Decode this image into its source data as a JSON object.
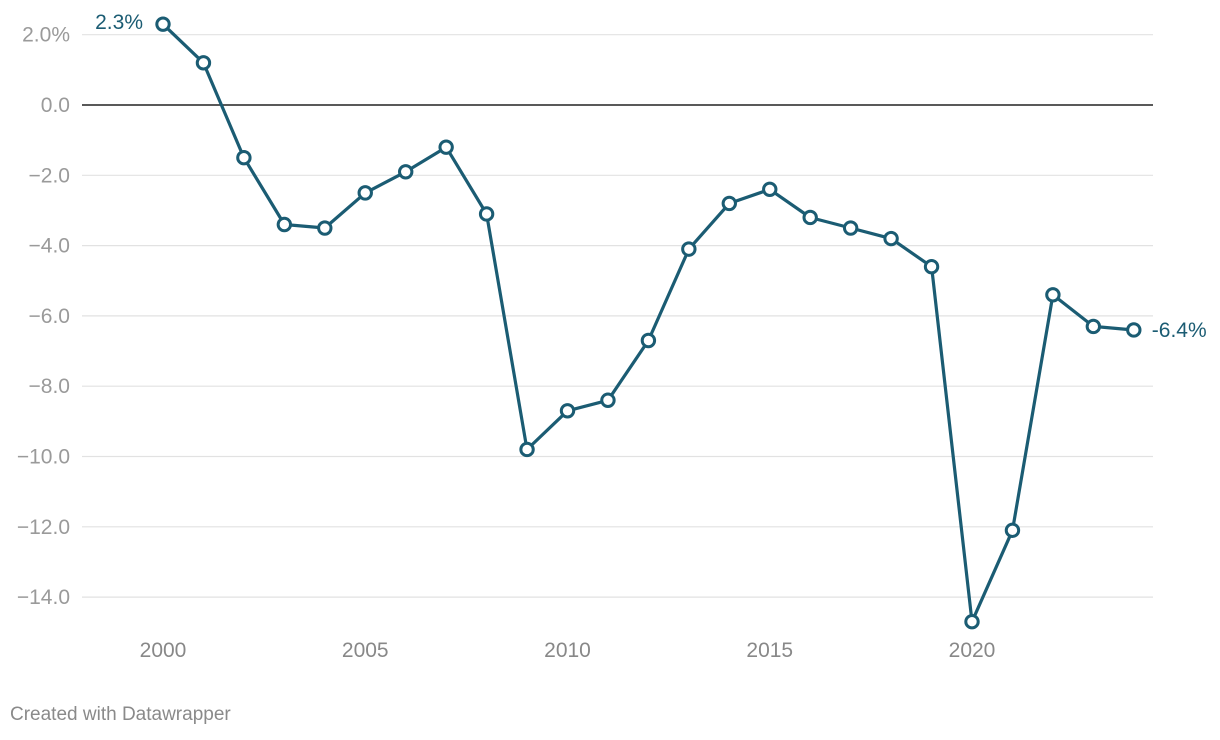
{
  "chart_data": {
    "type": "line",
    "title": "",
    "xlabel": "",
    "ylabel": "",
    "x": [
      2000,
      2001,
      2002,
      2003,
      2004,
      2005,
      2006,
      2007,
      2008,
      2009,
      2010,
      2011,
      2012,
      2013,
      2014,
      2015,
      2016,
      2017,
      2018,
      2019,
      2020,
      2021,
      2022,
      2023,
      2024
    ],
    "series": [
      {
        "values": [
          2.3,
          1.2,
          -1.5,
          -3.4,
          -3.5,
          -2.5,
          -1.9,
          -1.2,
          -3.1,
          -9.8,
          -8.7,
          -8.4,
          -6.7,
          -4.1,
          -2.8,
          -2.4,
          -3.2,
          -3.5,
          -3.8,
          -4.6,
          -14.7,
          -12.1,
          -5.4,
          -6.3,
          -6.4
        ]
      }
    ],
    "xlim": [
      1998,
      2024.5
    ],
    "ylim": [
      -15.2,
      2.4
    ],
    "y_ticks": [
      2,
      0,
      -2,
      -4,
      -6,
      -8,
      -10,
      -12,
      -14
    ],
    "y_tick_labels": [
      "2.0%",
      "0.0",
      "−2.0",
      "−4.0",
      "−6.0",
      "−8.0",
      "−10.0",
      "−12.0",
      "−14.0"
    ],
    "x_ticks": [
      2000,
      2005,
      2010,
      2015,
      2020
    ],
    "x_tick_labels": [
      "2000",
      "2005",
      "2010",
      "2015",
      "2020"
    ],
    "grid": true,
    "zero_line": true,
    "first_point_label": "2.3%",
    "last_point_label": "-6.4%",
    "colors": {
      "line": "#1b5c73",
      "grid": "#e2e2e2",
      "zero": "#222222",
      "marker_fill": "#ffffff"
    }
  },
  "footer": {
    "credit": "Created with Datawrapper"
  }
}
